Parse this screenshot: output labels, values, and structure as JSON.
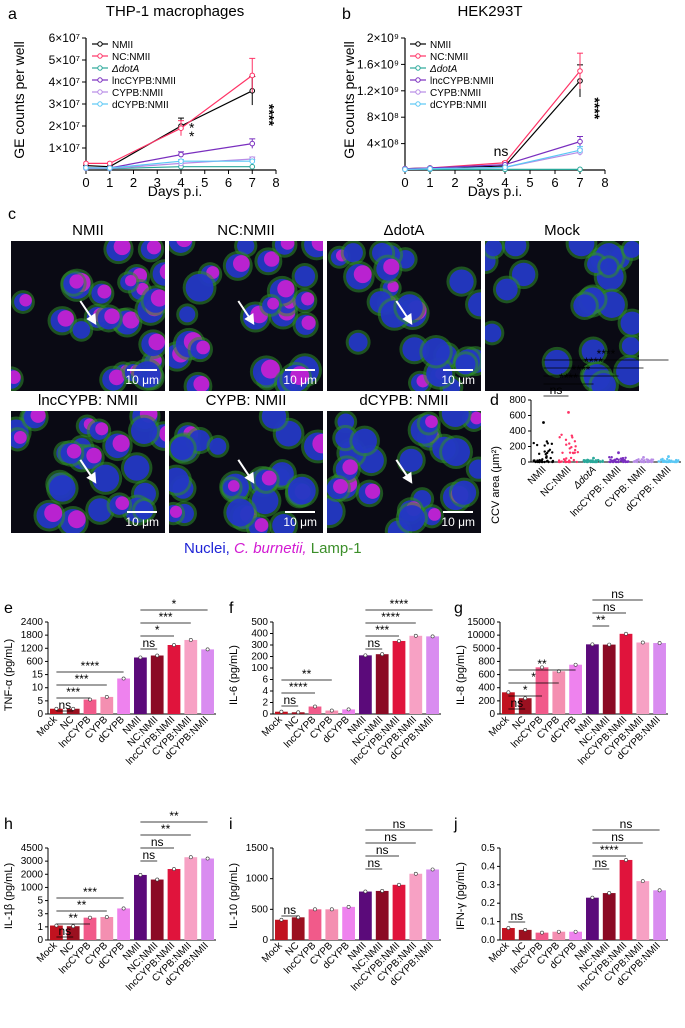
{
  "panels": {
    "a": {
      "letter": "a",
      "title": "THP-1 macrophages",
      "xlabel": "Days p.i.",
      "ylabel": "GE counts per well",
      "x_ticks": [
        "0",
        "1",
        "2",
        "3",
        "4",
        "5",
        "6",
        "7",
        "8"
      ],
      "y_ticks": [
        "1×10⁷",
        "2×10⁷",
        "3×10⁷",
        "4×10⁷",
        "5×10⁷",
        "6×10⁷"
      ],
      "legend": [
        "NMII",
        "NC:NMII",
        "ΔdotA",
        "lncCYPB:NMII",
        "CYPB:NMII",
        "dCYPB:NMII"
      ],
      "annot_star4": "*",
      "annot_star4b": "*",
      "annot_star7": "****"
    },
    "b": {
      "letter": "b",
      "title": "HEK293T",
      "xlabel": "Days p.i.",
      "ylabel": "GE counts per well",
      "x_ticks": [
        "0",
        "1",
        "2",
        "3",
        "4",
        "5",
        "6",
        "7",
        "8"
      ],
      "y_ticks": [
        "4×10⁸",
        "8×10⁸",
        "1.2×10⁹",
        "1.6×10⁹",
        "2×10⁹"
      ],
      "legend": [
        "NMII",
        "NC:NMII",
        "ΔdotA",
        "lncCYPB:NMII",
        "CYPB:NMII",
        "dCYPB:NMII"
      ],
      "annot_ns": "ns",
      "annot_star7": "****"
    },
    "c": {
      "letter": "c",
      "titles": [
        "NMII",
        "NC:NMII",
        "ΔdotA",
        "Mock",
        "lncCYPB: NMII",
        "CYPB: NMII",
        "dCYPB: NMII"
      ],
      "scale": "10 μm",
      "legend_nuclei": "Nuclei,",
      "legend_cb": "C. burnetii,",
      "legend_lamp": "Lamp-1"
    },
    "d": {
      "letter": "d",
      "ylabel": "CCV area (μm²)",
      "y_ticks": [
        "0",
        "200",
        "400",
        "600",
        "800"
      ],
      "categories": [
        "NMII",
        "NC:NMII",
        "ΔdotA",
        "lncCYPB: NMII",
        "CYPB: NMII",
        "dCYPB: NMII"
      ],
      "sig": [
        "ns",
        "****",
        "****",
        "****",
        "****"
      ]
    },
    "e": {
      "letter": "e",
      "ylabel": "TNF-α (pg/mL)",
      "y_ticks": [
        "0",
        "5",
        "10",
        "15",
        "600",
        "1200",
        "1800",
        "2400"
      ],
      "sig_left": [
        "ns",
        "***",
        "***",
        "****"
      ],
      "sig_right": [
        "ns",
        "*",
        "***",
        "*"
      ]
    },
    "f": {
      "letter": "f",
      "ylabel": "IL-6 (pg/mL)",
      "y_ticks": [
        "0",
        "2",
        "4",
        "6",
        "100",
        "200",
        "300",
        "400",
        "500"
      ],
      "sig_left": [
        "ns",
        "****",
        "**"
      ],
      "sig_right": [
        "ns",
        "***",
        "****",
        "****"
      ]
    },
    "g": {
      "letter": "g",
      "ylabel": "IL-8 (pg/mL)",
      "y_ticks": [
        "0",
        "200",
        "400",
        "600",
        "800",
        "5000",
        "10000",
        "15000"
      ],
      "sig_left": [
        "ns",
        "*",
        "*",
        "**"
      ],
      "sig_right": [
        "**",
        "ns",
        "ns"
      ]
    },
    "h": {
      "letter": "h",
      "ylabel": "IL-1β (pg/mL)",
      "y_ticks": [
        "0",
        "1",
        "3",
        "5",
        "1000",
        "2000",
        "3000",
        "4500"
      ],
      "sig_left": [
        "ns",
        "**",
        "**",
        "***"
      ],
      "sig_right": [
        "ns",
        "ns",
        "**",
        "**"
      ]
    },
    "i": {
      "letter": "i",
      "ylabel": "IL-10 (pg/mL)",
      "y_ticks": [
        "0",
        "500",
        "1000",
        "1500"
      ],
      "sig_left": [
        "ns"
      ],
      "sig_right": [
        "ns",
        "ns",
        "ns",
        "ns"
      ]
    },
    "j": {
      "letter": "j",
      "ylabel": "IFN-γ (pg/mL)",
      "y_ticks": [
        "0.0",
        "0.1",
        "0.2",
        "0.3",
        "0.4",
        "0.5"
      ],
      "sig_left": [
        "ns"
      ],
      "sig_right": [
        "ns",
        "****",
        "ns",
        "ns"
      ]
    },
    "bar_categories": [
      "Mock",
      "NC",
      "lncCYPB",
      "CYPB",
      "dCYPB",
      "NMII",
      "NC:NMII",
      "lncCYPB:NMII",
      "CYPB:NMII",
      "dCYPB:NMII"
    ]
  },
  "colors": {
    "NMII": "#000000",
    "NC_NMII": "#ff3366",
    "dotA": "#2aa89a",
    "lncCYPB_NMII": "#7a2fbf",
    "CYPB_NMII": "#b78be6",
    "dCYPB_NMII": "#5bc8f5",
    "bar_mock": "#c1121f",
    "bar_nc": "#9b1020",
    "bar_lnc": "#f15a8a",
    "bar_cypb": "#f48fb1",
    "bar_dcypb": "#ee82ee",
    "bar_nmii": "#5b0a7a",
    "bar_ncnmii": "#8b0a24",
    "bar_lncnmii": "#e0143c",
    "bar_cypbnmii": "#f7a1c4",
    "bar_dcypbnmii": "#d98cf0"
  },
  "chart_data": [
    {
      "type": "line",
      "title": "THP-1 macrophages",
      "xlabel": "Days p.i.",
      "ylabel": "GE counts per well",
      "x": [
        0,
        1,
        4,
        7
      ],
      "ylim": [
        0,
        60000000
      ],
      "xlim": [
        0,
        8
      ],
      "series": [
        {
          "name": "NMII",
          "values": [
            2000000,
            1500000,
            20000000,
            36000000
          ]
        },
        {
          "name": "NC:NMII",
          "values": [
            3000000,
            3000000,
            19000000,
            43000000
          ]
        },
        {
          "name": "ΔdotA",
          "values": [
            800000,
            600000,
            1500000,
            1500000
          ]
        },
        {
          "name": "lncCYPB:NMII",
          "values": [
            1000000,
            900000,
            7000000,
            12000000
          ]
        },
        {
          "name": "CYPB:NMII",
          "values": [
            800000,
            700000,
            3000000,
            5000000
          ]
        },
        {
          "name": "dCYPB:NMII",
          "values": [
            1000000,
            900000,
            4000000,
            4000000
          ]
        }
      ]
    },
    {
      "type": "line",
      "title": "HEK293T",
      "xlabel": "Days p.i.",
      "ylabel": "GE counts per well",
      "x": [
        0,
        1,
        4,
        7
      ],
      "ylim": [
        0,
        2000000000
      ],
      "xlim": [
        0,
        8
      ],
      "series": [
        {
          "name": "NMII",
          "values": [
            20000000,
            30000000,
            60000000,
            1350000000
          ]
        },
        {
          "name": "NC:NMII",
          "values": [
            20000000,
            30000000,
            110000000,
            1500000000
          ]
        },
        {
          "name": "ΔdotA",
          "values": [
            10000000,
            10000000,
            10000000,
            10000000
          ]
        },
        {
          "name": "lncCYPB:NMII",
          "values": [
            20000000,
            30000000,
            80000000,
            430000000
          ]
        },
        {
          "name": "CYPB:NMII",
          "values": [
            10000000,
            20000000,
            40000000,
            270000000
          ]
        },
        {
          "name": "dCYPB:NMII",
          "values": [
            10000000,
            20000000,
            40000000,
            300000000
          ]
        }
      ]
    },
    {
      "type": "scatter",
      "ylabel": "CCV area (μm²)",
      "categories": [
        "NMII",
        "NC:NMII",
        "ΔdotA",
        "lncCYPB: NMII",
        "CYPB: NMII",
        "dCYPB: NMII"
      ],
      "ylim": [
        0,
        800
      ],
      "max_values": [
        510,
        640,
        50,
        120,
        60,
        70
      ]
    },
    {
      "type": "bar",
      "ylabel": "TNF-α (pg/mL)",
      "categories": [
        "Mock",
        "NC",
        "lncCYPB",
        "CYPB",
        "dCYPB",
        "NMII",
        "NC:NMII",
        "lncCYPB:NMII",
        "CYPB:NMII",
        "dCYPB:NMII"
      ],
      "values": [
        2,
        2,
        5.5,
        6.5,
        13.5,
        780,
        870,
        1350,
        1580,
        1150
      ]
    },
    {
      "type": "bar",
      "ylabel": "IL-6 (pg/mL)",
      "categories": [
        "Mock",
        "NC",
        "lncCYPB",
        "CYPB",
        "dCYPB",
        "NMII",
        "NC:NMII",
        "lncCYPB:NMII",
        "CYPB:NMII",
        "dCYPB:NMII"
      ],
      "values": [
        0.4,
        0.3,
        1.3,
        0.6,
        0.8,
        210,
        220,
        335,
        380,
        375
      ]
    },
    {
      "type": "bar",
      "ylabel": "IL-8 (pg/mL)",
      "categories": [
        "Mock",
        "NC",
        "lncCYPB",
        "CYPB",
        "dCYPB",
        "NMII",
        "NC:NMII",
        "lncCYPB:NMII",
        "CYPB:NMII",
        "dCYPB:NMII"
      ],
      "values": [
        330,
        240,
        710,
        650,
        750,
        6500,
        6400,
        10500,
        7200,
        7000
      ]
    },
    {
      "type": "bar",
      "ylabel": "IL-1β (pg/mL)",
      "categories": [
        "Mock",
        "NC",
        "lncCYPB",
        "CYPB",
        "dCYPB",
        "NMII",
        "NC:NMII",
        "lncCYPB:NMII",
        "CYPB:NMII",
        "dCYPB:NMII"
      ],
      "values": [
        1.2,
        1.1,
        2.4,
        2.5,
        3.8,
        1950,
        1600,
        2400,
        3450,
        3300
      ]
    },
    {
      "type": "bar",
      "ylabel": "IL-10 (pg/mL)",
      "categories": [
        "Mock",
        "NC",
        "lncCYPB",
        "CYPB",
        "dCYPB",
        "NMII",
        "NC:NMII",
        "lncCYPB:NMII",
        "CYPB:NMII",
        "dCYPB:NMII"
      ],
      "values": [
        330,
        370,
        500,
        500,
        540,
        790,
        800,
        900,
        1080,
        1150
      ],
      "ylim": [
        0,
        1500
      ]
    },
    {
      "type": "bar",
      "ylabel": "IFN-γ (pg/mL)",
      "categories": [
        "Mock",
        "NC",
        "lncCYPB",
        "CYPB",
        "dCYPB",
        "NMII",
        "NC:NMII",
        "lncCYPB:NMII",
        "CYPB:NMII",
        "dCYPB:NMII"
      ],
      "values": [
        0.065,
        0.055,
        0.04,
        0.045,
        0.045,
        0.23,
        0.255,
        0.435,
        0.32,
        0.27
      ],
      "ylim": [
        0,
        0.5
      ]
    }
  ]
}
